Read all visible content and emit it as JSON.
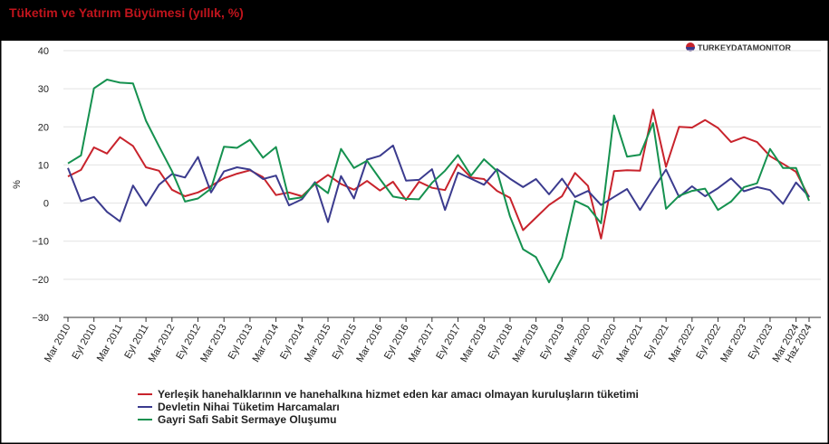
{
  "chart_data": {
    "type": "line",
    "title": "Tüketim ve Yatırım Büyümesi (yıllık, %)",
    "source": "TURKEYDATAMONITOR",
    "ylabel": "%",
    "categories": [
      "Mar 2010",
      null,
      "Eyl 2010",
      null,
      "Mar 2011",
      null,
      "Eyl 2011",
      null,
      "Mar 2012",
      null,
      "Eyl 2012",
      null,
      "Mar 2013",
      null,
      "Eyl 2013",
      null,
      "Mar 2014",
      null,
      "Eyl 2014",
      null,
      "Mar 2015",
      null,
      "Eyl 2015",
      null,
      "Mar 2016",
      null,
      "Eyl 2016",
      null,
      "Mar 2017",
      null,
      "Eyl 2017",
      null,
      "Mar 2018",
      null,
      "Eyl 2018",
      null,
      "Mar 2019",
      null,
      "Eyl 2019",
      null,
      "Mar 2020",
      null,
      "Eyl 2020",
      null,
      "Mar 2021",
      null,
      "Eyl 2021",
      null,
      "Mar 2022",
      null,
      "Eyl 2022",
      null,
      "Mar 2023",
      null,
      "Eyl 2023",
      null,
      "Mar 2024",
      "Haz 2024"
    ],
    "series": [
      {
        "name": "Yerleşik hanehalklarının ve hanehalkına hizmet eden kar amacı olmayan kuruluşların tüketimi",
        "color": "#c8232c",
        "values": [
          7,
          8.7,
          14.6,
          13,
          17.3,
          15,
          9.4,
          8.5,
          3.5,
          1.8,
          2.8,
          4.5,
          6.5,
          7.7,
          8.6,
          6.8,
          2.1,
          2.8,
          1.8,
          5,
          7.4,
          5,
          3.5,
          5.8,
          3.3,
          5.6,
          0.8,
          5.6,
          4,
          3.4,
          10.2,
          6.7,
          6.3,
          3.2,
          1.4,
          -7.1,
          -3.8,
          -0.5,
          1.8,
          7.9,
          4.5,
          -9.3,
          8.4,
          8.6,
          8.5,
          24.5,
          9.5,
          20,
          19.8,
          21.8,
          19.7,
          16,
          17.3,
          16,
          12.3,
          10.3,
          8.2,
          1.5
        ]
      },
      {
        "name": "Devletin Nihai Tüketim Harcamaları",
        "color": "#3b3b8e",
        "values": [
          9.2,
          0.5,
          1.6,
          -2.3,
          -4.8,
          4.6,
          -0.7,
          4.8,
          7.6,
          6.7,
          12.1,
          2.8,
          8.3,
          9.4,
          8.8,
          6.3,
          7.2,
          -0.6,
          1,
          5.5,
          -5,
          7.1,
          1.2,
          11.4,
          12.4,
          15.1,
          5.9,
          6.1,
          8.9,
          -1.8,
          8,
          6.4,
          4.8,
          8.9,
          6.4,
          4.2,
          6.3,
          2.3,
          6.4,
          1.6,
          3.2,
          -0.5,
          1.6,
          3.7,
          -1.8,
          3.6,
          8.8,
          1.6,
          4.4,
          1.8,
          3.9,
          6.5,
          3.1,
          4.2,
          3.4,
          -0.2,
          5.4,
          1.7
        ]
      },
      {
        "name": "Gayri Safi Sabit Sermaye Oluşumu",
        "color": "#15914f",
        "values": [
          10.4,
          12.5,
          30.1,
          32.4,
          31.6,
          31.4,
          21.6,
          14.9,
          8.4,
          0.4,
          1.2,
          3.8,
          14.8,
          14.5,
          16.6,
          11.9,
          14.7,
          1,
          1.5,
          5.2,
          2.6,
          14.2,
          9.2,
          11.1,
          6.3,
          1.7,
          1.1,
          1,
          5.3,
          8.5,
          12.6,
          7.2,
          11.5,
          8.4,
          -3.5,
          -12.1,
          -14.2,
          -20.8,
          -14.3,
          0.6,
          -1,
          -5.3,
          23,
          12.2,
          12.7,
          21,
          -1.5,
          1.9,
          3.2,
          3.8,
          -1.8,
          0.4,
          4.2,
          5.2,
          14.2,
          9.2,
          9.2,
          0.6
        ]
      }
    ],
    "ylim": [
      -30,
      40
    ],
    "yticks": [
      {
        "value": -30,
        "label": "−30"
      },
      {
        "value": -20,
        "label": "−20"
      },
      {
        "value": -10,
        "label": "−10"
      },
      0,
      10,
      20,
      30,
      40
    ],
    "grid": true,
    "legend": "bottom"
  }
}
